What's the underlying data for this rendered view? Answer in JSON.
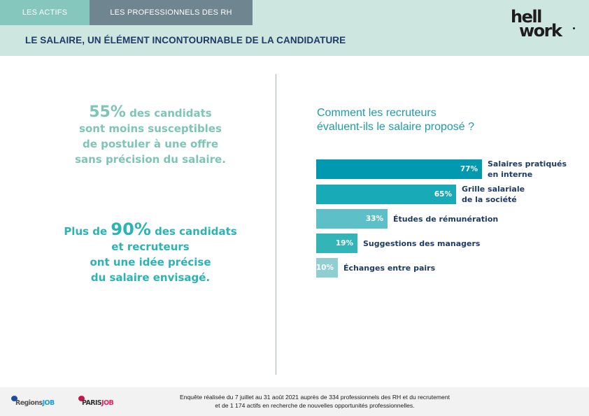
{
  "tabs": [
    {
      "label": "LES ACTIFS",
      "color": "#86c7bd"
    },
    {
      "label": "LES PROFESSIONNELS DES RH",
      "color": "#6f8590"
    }
  ],
  "header": {
    "title": "LE SALAIRE, UN ÉLÉMENT INCONTOURNABLE DE LA CANDIDATURE",
    "logo": {
      "line1": "hell",
      "line2": "work",
      "name": "hellowork"
    }
  },
  "left": {
    "stat1": {
      "big": "55%",
      "line1_rest": " des candidats",
      "line2": "sont moins susceptibles",
      "line3": "de postuler à une offre",
      "line4": "sans précision du salaire."
    },
    "stat2": {
      "prefix": "Plus de ",
      "big": "90%",
      "line1_rest": " des candidats",
      "line2": "et recruteurs",
      "line3": "ont une idée précise",
      "line4": "du salaire envisagé."
    }
  },
  "right": {
    "question_line1": "Comment les recruteurs",
    "question_line2": "évaluent-ils le salaire proposé ?"
  },
  "chart_data": {
    "type": "bar",
    "orientation": "horizontal",
    "title": "Comment les recruteurs évaluent-ils le salaire proposé ?",
    "unit": "%",
    "categories": [
      [
        "Salaires pratiqués",
        "en interne"
      ],
      [
        "Grille salariale",
        "de la société"
      ],
      [
        "Études de rémunération"
      ],
      [
        "Suggestions des managers"
      ],
      [
        "Échanges entre pairs"
      ]
    ],
    "values": [
      77,
      65,
      33,
      19,
      10
    ],
    "value_labels": [
      "77%",
      "65%",
      "33%",
      "19%",
      "10%"
    ],
    "colors": [
      "#0099b0",
      "#19aab8",
      "#5dc0c9",
      "#33b5b8",
      "#8fcfd2"
    ],
    "xlim": [
      0,
      100
    ]
  },
  "footer": {
    "line1": "Enquête réalisée du 7 juillet au 31 août 2021 auprès de 334 professionnels des RH et du recrutement",
    "line2": "et de 1 174 actifs en recherche de nouvelles opportunités professionnelles.",
    "brands": [
      {
        "part1": "Regions",
        "part2": "JOB",
        "color1": "#555555",
        "color2": "#1aa0dc",
        "bubble": "#1a4fa0"
      },
      {
        "part1": "PARIS",
        "part2": "JOB",
        "color1": "#333333",
        "color2": "#e0245e",
        "bubble": "#c4164d"
      }
    ]
  }
}
